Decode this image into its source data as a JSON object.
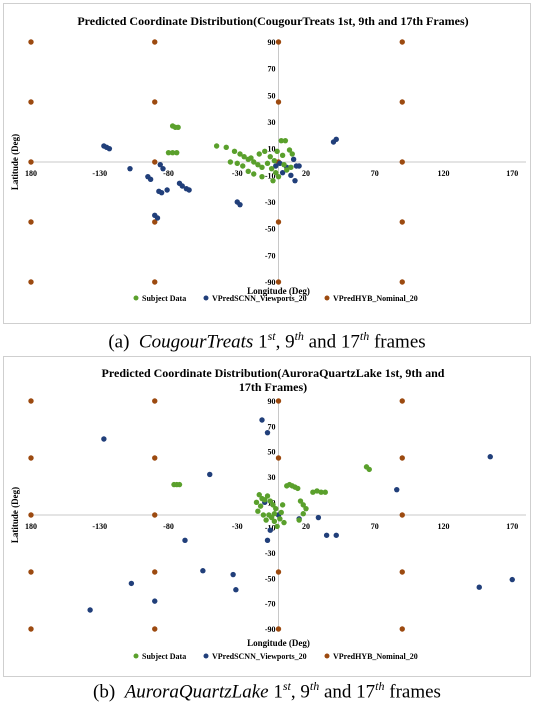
{
  "colors": {
    "subject": "#5aa02c",
    "scnn": "#213f7a",
    "hyb": "#9c4a10",
    "axis": "#c8c8c8"
  },
  "chart_data": [
    {
      "type": "scatter",
      "title": "Predicted Coordinate Distribution(CougourTreats 1st, 9th and 17th Frames)",
      "xlabel": "Longitude (Deg)",
      "ylabel": "Latitude (Deg)",
      "xlim": [
        -180,
        180
      ],
      "ylim": [
        -90,
        90
      ],
      "xticks": [
        -180,
        -130,
        -80,
        -30,
        20,
        70,
        120,
        170
      ],
      "xtick_labels": [
        "180",
        "-130",
        "-80",
        "-30",
        "20",
        "70",
        "120",
        "170"
      ],
      "yticks": [
        90,
        70,
        50,
        30,
        10,
        -10,
        -30,
        -50,
        -70,
        -90
      ],
      "legend_position": "bottom",
      "grid": false,
      "series": [
        {
          "name": "Subject Data",
          "points": [
            [
              -77,
              27
            ],
            [
              -75,
              26
            ],
            [
              -73,
              26
            ],
            [
              -80,
              7
            ],
            [
              -77,
              7
            ],
            [
              -74,
              7
            ],
            [
              -45,
              12
            ],
            [
              -38,
              11
            ],
            [
              -32,
              8
            ],
            [
              -28,
              6
            ],
            [
              -25,
              4
            ],
            [
              -22,
              2
            ],
            [
              -18,
              0
            ],
            [
              -15,
              -2
            ],
            [
              -12,
              -4
            ],
            [
              -8,
              -1
            ],
            [
              -5,
              -5
            ],
            [
              -3,
              1
            ],
            [
              -35,
              0
            ],
            [
              -30,
              -1
            ],
            [
              -26,
              -3
            ],
            [
              -20,
              3
            ],
            [
              -14,
              6
            ],
            [
              -10,
              8
            ],
            [
              -6,
              4
            ],
            [
              -2,
              -8
            ],
            [
              0,
              -11
            ],
            [
              -4,
              -14
            ],
            [
              -22,
              -7
            ],
            [
              -18,
              -9
            ],
            [
              -12,
              -11
            ],
            [
              2,
              16
            ],
            [
              5,
              16
            ],
            [
              8,
              9
            ],
            [
              10,
              6
            ],
            [
              4,
              -2
            ],
            [
              -1,
              8
            ],
            [
              6,
              -6
            ],
            [
              9,
              -4
            ],
            [
              3,
              5
            ]
          ]
        },
        {
          "name": "VPredSCNN_Viewports_20",
          "points": [
            [
              -127,
              12
            ],
            [
              -125,
              11
            ],
            [
              -123,
              10
            ],
            [
              -108,
              -5
            ],
            [
              -86,
              -2
            ],
            [
              -84,
              -5
            ],
            [
              -95,
              -11
            ],
            [
              -93,
              -13
            ],
            [
              -87,
              -22
            ],
            [
              -85,
              -23
            ],
            [
              -81,
              -21
            ],
            [
              -90,
              -40
            ],
            [
              -88,
              -42
            ],
            [
              -72,
              -16
            ],
            [
              -70,
              -18
            ],
            [
              -67,
              -20
            ],
            [
              -65,
              -21
            ],
            [
              -30,
              -30
            ],
            [
              -28,
              -32
            ],
            [
              40,
              15
            ],
            [
              42,
              17
            ],
            [
              -2,
              -3
            ],
            [
              1,
              -1
            ],
            [
              3,
              -8
            ],
            [
              6,
              -4
            ],
            [
              9,
              -10
            ],
            [
              11,
              2
            ],
            [
              13,
              -3
            ],
            [
              12,
              -14
            ],
            [
              15,
              -3
            ]
          ]
        },
        {
          "name": "VPredHYB_Nominal_20",
          "points": [
            [
              -180,
              90
            ],
            [
              -180,
              45
            ],
            [
              -180,
              0
            ],
            [
              -180,
              -45
            ],
            [
              -180,
              -90
            ],
            [
              -90,
              90
            ],
            [
              -90,
              45
            ],
            [
              -90,
              0
            ],
            [
              -90,
              -45
            ],
            [
              -90,
              -90
            ],
            [
              0,
              90
            ],
            [
              0,
              45
            ],
            [
              0,
              0
            ],
            [
              0,
              -45
            ],
            [
              0,
              -90
            ],
            [
              90,
              90
            ],
            [
              90,
              45
            ],
            [
              90,
              0
            ],
            [
              90,
              -45
            ],
            [
              90,
              -90
            ]
          ]
        }
      ]
    },
    {
      "type": "scatter",
      "title": "Predicted Coordinate Distribution(AuroraQuartzLake 1st, 9th and 17th Frames)",
      "xlabel": "Longitude (Deg)",
      "ylabel": "Latitude (Deg)",
      "xlim": [
        -180,
        180
      ],
      "ylim": [
        -90,
        90
      ],
      "xticks": [
        -180,
        -130,
        -80,
        -30,
        20,
        70,
        120,
        170
      ],
      "xtick_labels": [
        "180",
        "-130",
        "-80",
        "-30",
        "20",
        "70",
        "120",
        "170"
      ],
      "yticks": [
        90,
        70,
        50,
        30,
        10,
        -10,
        -30,
        -50,
        -70,
        -90
      ],
      "legend_position": "bottom",
      "grid": false,
      "series": [
        {
          "name": "Subject Data",
          "points": [
            [
              -76,
              24
            ],
            [
              -74,
              24
            ],
            [
              -72,
              24
            ],
            [
              -14,
              16
            ],
            [
              -12,
              13
            ],
            [
              -10,
              12
            ],
            [
              -8,
              15
            ],
            [
              -6,
              11
            ],
            [
              -4,
              8
            ],
            [
              -2,
              5
            ],
            [
              -15,
              3
            ],
            [
              -13,
              7
            ],
            [
              -11,
              0
            ],
            [
              -9,
              -4
            ],
            [
              -7,
              0
            ],
            [
              -5,
              -2
            ],
            [
              -3,
              -5
            ],
            [
              -1,
              -9
            ],
            [
              1,
              -3
            ],
            [
              3,
              8
            ],
            [
              6,
              23
            ],
            [
              8,
              24
            ],
            [
              10,
              23
            ],
            [
              12,
              22
            ],
            [
              14,
              21
            ],
            [
              16,
              11
            ],
            [
              18,
              8
            ],
            [
              20,
              5
            ],
            [
              18,
              1
            ],
            [
              15,
              -4
            ],
            [
              25,
              18
            ],
            [
              28,
              19
            ],
            [
              31,
              18
            ],
            [
              34,
              18
            ],
            [
              64,
              38
            ],
            [
              66,
              36
            ],
            [
              -3,
              1
            ],
            [
              2,
              2
            ],
            [
              -16,
              10
            ],
            [
              4,
              -6
            ]
          ]
        },
        {
          "name": "VPredSCNN_Viewports_20",
          "points": [
            [
              -127,
              60
            ],
            [
              -137,
              -75
            ],
            [
              -107,
              -54
            ],
            [
              -90,
              -68
            ],
            [
              -68,
              -20
            ],
            [
              -55,
              -44
            ],
            [
              -50,
              32
            ],
            [
              -33,
              -47
            ],
            [
              -31,
              -59
            ],
            [
              -12,
              75
            ],
            [
              -8,
              65
            ],
            [
              -8,
              -20
            ],
            [
              -10,
              10
            ],
            [
              -6,
              -12
            ],
            [
              0,
              0
            ],
            [
              15,
              -3
            ],
            [
              29,
              -2
            ],
            [
              35,
              -16
            ],
            [
              42,
              -16
            ],
            [
              86,
              20
            ],
            [
              146,
              -57
            ],
            [
              154,
              46
            ],
            [
              170,
              -51
            ]
          ]
        },
        {
          "name": "VPredHYB_Nominal_20",
          "points": [
            [
              -180,
              90
            ],
            [
              -180,
              45
            ],
            [
              -180,
              0
            ],
            [
              -180,
              -45
            ],
            [
              -180,
              -90
            ],
            [
              -90,
              90
            ],
            [
              -90,
              45
            ],
            [
              -90,
              0
            ],
            [
              -90,
              -45
            ],
            [
              -90,
              -90
            ],
            [
              0,
              90
            ],
            [
              0,
              45
            ],
            [
              0,
              0
            ],
            [
              0,
              -45
            ],
            [
              0,
              -90
            ],
            [
              90,
              90
            ],
            [
              90,
              45
            ],
            [
              90,
              0
            ],
            [
              90,
              -45
            ],
            [
              90,
              -90
            ]
          ]
        }
      ]
    }
  ],
  "captions": [
    {
      "label": "(a)",
      "name": "CougourTreats",
      "n1": "1",
      "s1": "st",
      "n2": "9",
      "s2": "th",
      "mid": "and",
      "n3": "17",
      "s3": "th",
      "tail": "frames"
    },
    {
      "label": "(b)",
      "name": "AuroraQuartzLake",
      "n1": "1",
      "s1": "st",
      "n2": "9",
      "s2": "th",
      "mid": "and",
      "n3": "17",
      "s3": "th",
      "tail": "frames"
    }
  ]
}
